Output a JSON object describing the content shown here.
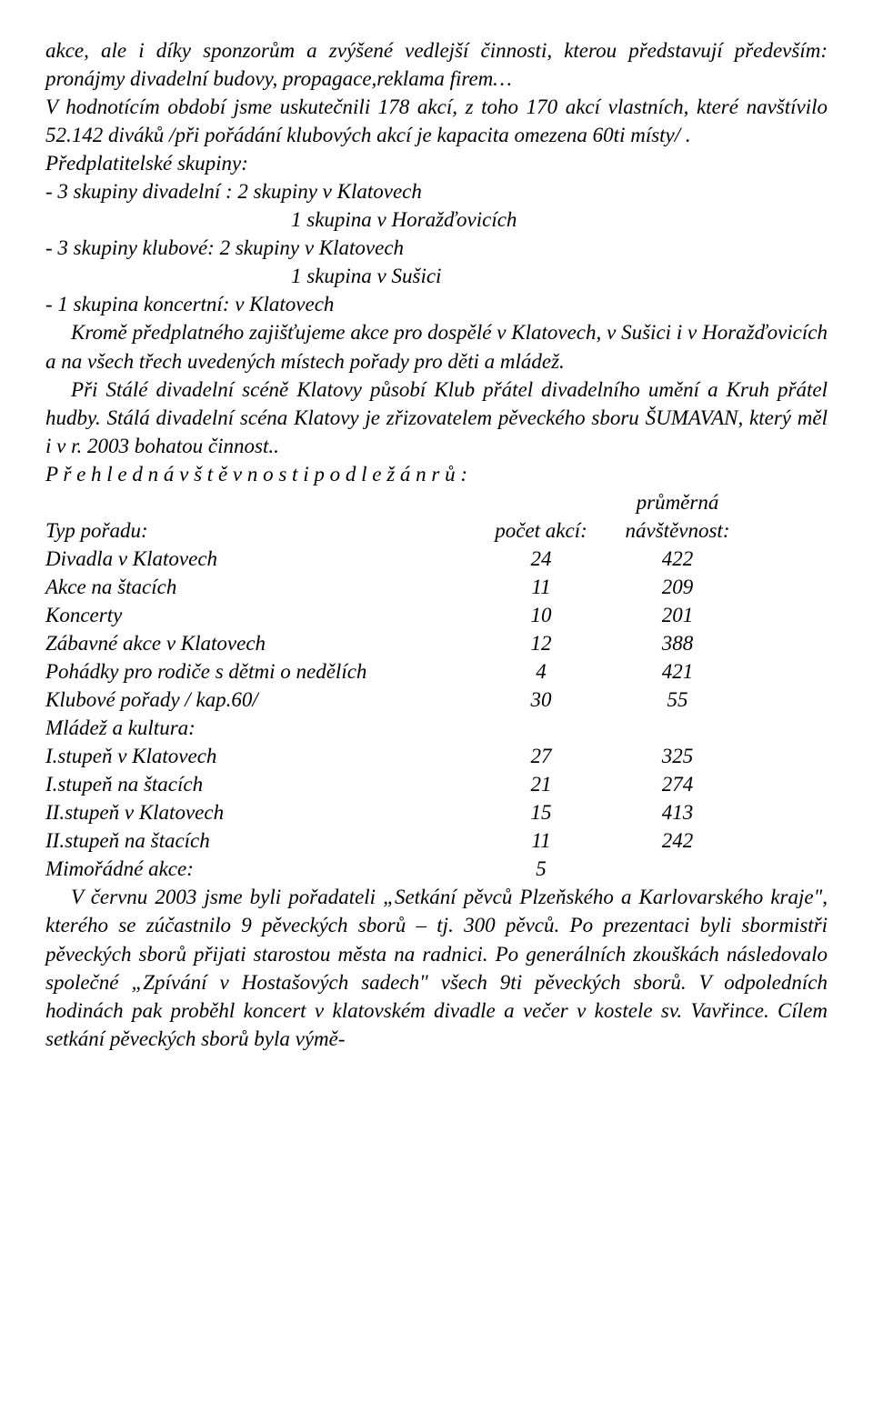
{
  "paragraphs": {
    "p1": "akce, ale i díky sponzorům a zvýšené vedlejší činnosti, kterou před­stavují především: pronájmy divadelní budovy, propagace,reklama firem…",
    "p2": "V hodnotícím  období  jsme uskutečnili 178 akcí, z toho 170  akcí vlastních, které navštívilo 52.142  diváků /při pořádání  klubových akcí je kapacita omezena 60ti místy/ .",
    "p3": "Předplatitelské skupiny:",
    "p4": "- 3 skupiny divadelní : 2 skupiny v Klatovech",
    "p5": "1 skupina v Horažďovicích",
    "p6": "- 3 skupiny klubové:    2 skupiny v Klatovech",
    "p7": "1 skupina v Sušici",
    "p8": " - 1 skupina koncertní: v Klatovech",
    "p9": "Kromě předplatného zajišťujeme akce pro dospělé v Klatovech, v Sušici i  v Horažďovicích  a  na všech  třech  uvedených místech pořady pro děti a mládež.",
    "p10": "Při Stálé divadelní scéně Klatovy působí Klub přátel divadelního umění a Kruh přátel hudby. Stálá divadelní scéna Klatovy  je zřizo­vatelem pěveckého sboru ŠUMAVAN, který měl i v r. 2003 bohatou činnost..",
    "p11": "P ř e h l e d    n á v š t ě v n o s t i    p o d l e   ž á n r ů :",
    "header_r1": "průměrná",
    "header_type": "Typ pořadu:",
    "header_count": "počet akcí:",
    "header_att": "návštěvnost:",
    "mladez": "Mládež a kultura:",
    "mimo_label": "Mimořádné akce:",
    "mimo_val": "5",
    "p_last": "V červnu 2003 jsme byli pořadateli „Setkání pěvců Plzeňského a Karlovarského kraje\", kterého  se zúčastnilo 9  pěveckých sborů – tj. 300  pěvců. Po prezentaci  byli  sbormistři pěveckých  sborů  přijati starostou  města  na radnici.  Po generálních  zkouškách následovalo společné „Zpívání v Hostašových sadech\" všech 9ti pěveckých sborů. V odpoledních hodinách pak proběhl koncert  v klatovském divadle a večer v kostele sv. Vavřince.  Cílem setkání pěveckých sborů byla výmě-"
  },
  "rows": [
    {
      "type": "Divadla v Klatovech",
      "count": "24",
      "att": "422"
    },
    {
      "type": "Akce  na štacích",
      "count": "11",
      "att": "209"
    },
    {
      "type": "Koncerty",
      "count": "10",
      "att": "201"
    },
    {
      "type": "Zábavné akce v Klatovech",
      "count": "12",
      "att": "388"
    },
    {
      "type": "Pohádky pro rodiče s dětmi o nedělích",
      "count": "4",
      "att": "421"
    },
    {
      "type": "Klubové pořady  / kap.60/",
      "count": "30",
      "att": "55"
    }
  ],
  "rows2": [
    {
      "type": "I.stupeň v Klatovech",
      "count": "27",
      "att": "325"
    },
    {
      "type": "I.stupeň na štacích",
      "count": "21",
      "att": "274"
    },
    {
      "type": "II.stupeň v Klatovech",
      "count": "15",
      "att": "413"
    },
    {
      "type": "II.stupeň na štacích",
      "count": "11",
      "att": "242"
    }
  ]
}
